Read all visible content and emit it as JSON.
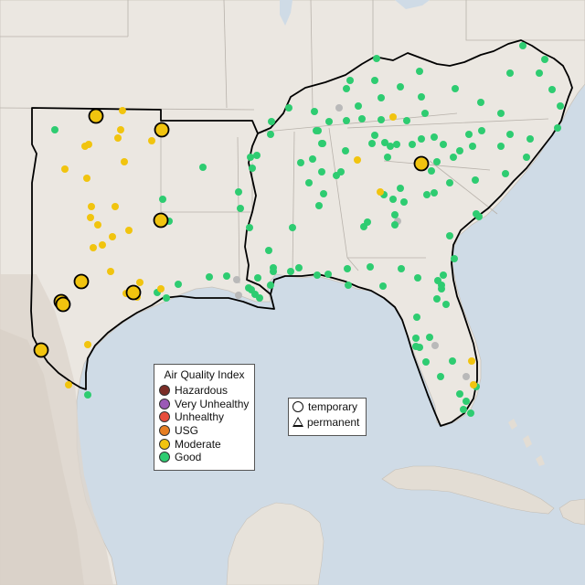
{
  "map": {
    "colors": {
      "water": "#cfdbe6",
      "land": "#ebe7e1",
      "terrain": "#ddd6cd",
      "state_lines": "#b8b2ab",
      "region_outline": "#000000",
      "good": "#2ecc71",
      "moderate": "#f1c40f",
      "usg": "#e67e22",
      "unhealthy": "#e74c3c",
      "very_unhealthy": "#9b59b6",
      "hazardous": "#7b2d26",
      "no_data": "#b9b9b9"
    }
  },
  "legend_aqi": {
    "title": "Air Quality Index",
    "items": [
      {
        "label": "Hazardous",
        "color": "#7b2d26"
      },
      {
        "label": "Very Unhealthy",
        "color": "#9b59b6"
      },
      {
        "label": "Unhealthy",
        "color": "#e74c3c"
      },
      {
        "label": "USG",
        "color": "#e67e22"
      },
      {
        "label": "Moderate",
        "color": "#f1c40f"
      },
      {
        "label": "Good",
        "color": "#2ecc71"
      }
    ]
  },
  "legend_shape": {
    "items": [
      {
        "label": "temporary",
        "icon": "circle-icon"
      },
      {
        "label": "permanent",
        "icon": "triangle-icon"
      }
    ]
  }
}
